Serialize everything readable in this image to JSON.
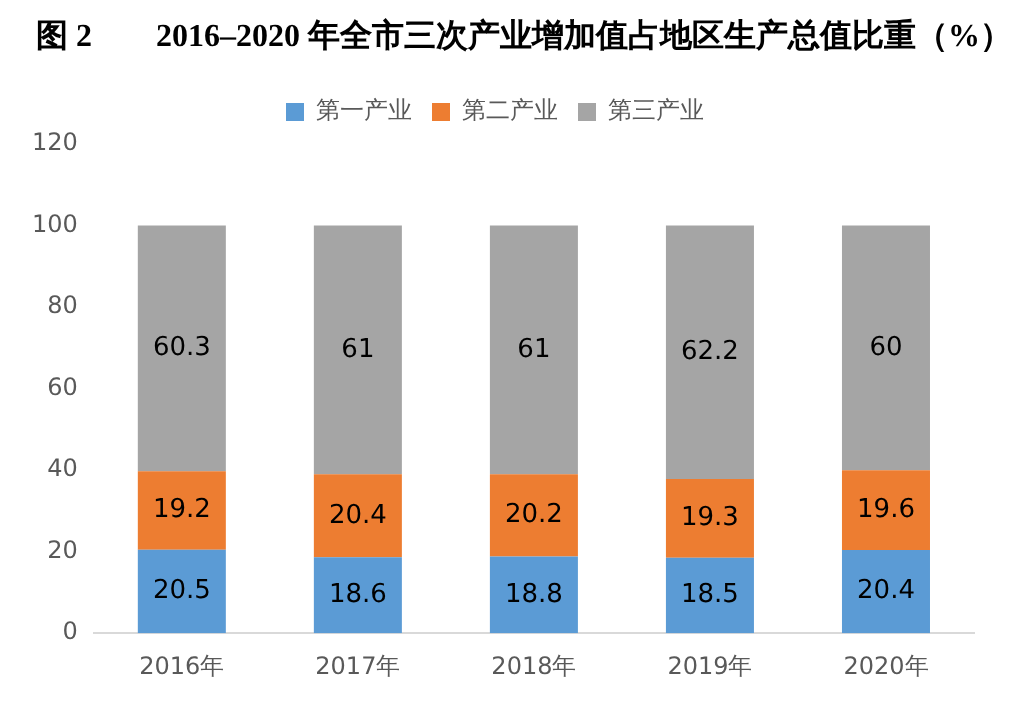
{
  "chart_data": {
    "type": "bar",
    "title": "图 2　　2016–2020 年全市三次产业增加值占地区生产总值比重（%）",
    "categories": [
      "2016年",
      "2017年",
      "2018年",
      "2019年",
      "2020年"
    ],
    "series": [
      {
        "name": "第一产业",
        "color": "#5b9bd5",
        "values": [
          20.5,
          18.6,
          18.8,
          18.5,
          20.4
        ]
      },
      {
        "name": "第二产业",
        "color": "#ed7d31",
        "values": [
          19.2,
          20.4,
          20.2,
          19.3,
          19.6
        ]
      },
      {
        "name": "第三产业",
        "color": "#a5a5a5",
        "values": [
          60.3,
          61,
          61,
          62.2,
          60
        ]
      }
    ],
    "stacked": true,
    "data_labels": true,
    "ylim": [
      0,
      120
    ],
    "yticks": [
      0,
      20,
      40,
      60,
      80,
      100,
      120
    ],
    "grid": false,
    "legend": "top"
  }
}
